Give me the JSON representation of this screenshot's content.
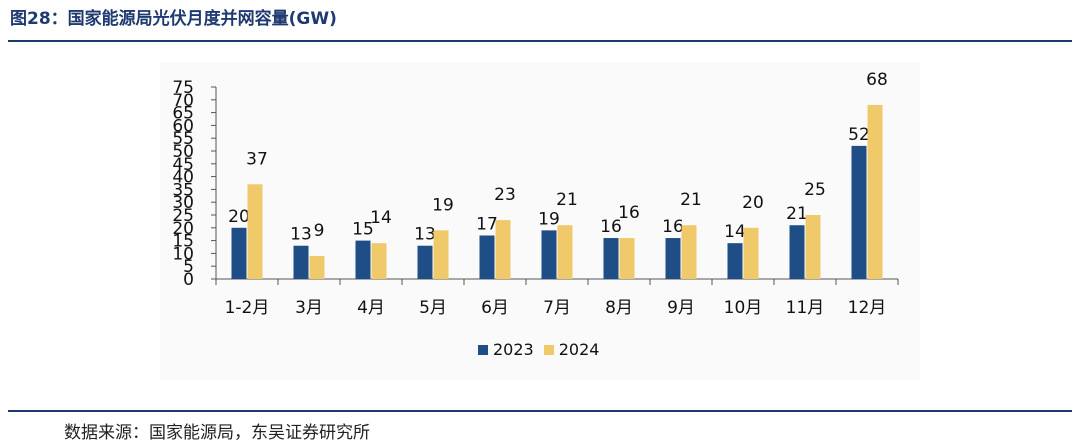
{
  "figure": {
    "title": "图28：国家能源局光伏月度并网容量(GW)",
    "source": "数据来源：国家能源局，东吴证券研究所"
  },
  "colors": {
    "s2023": "#1f4e87",
    "s2024": "#f0c96a"
  },
  "chart_data": {
    "type": "bar",
    "title": "",
    "xlabel": "",
    "ylabel": "",
    "categories": [
      "1-2月",
      "3月",
      "4月",
      "5月",
      "6月",
      "7月",
      "8月",
      "9月",
      "10月",
      "11月",
      "12月"
    ],
    "series": [
      {
        "name": "2023",
        "values": [
          20,
          13,
          15,
          13,
          17,
          19,
          16,
          16,
          14,
          21,
          52
        ]
      },
      {
        "name": "2024",
        "values": [
          37,
          9,
          14,
          19,
          23,
          21,
          16,
          21,
          20,
          25,
          68
        ]
      }
    ],
    "ylim": [
      0,
      75
    ],
    "yticks": [
      0,
      5,
      10,
      15,
      20,
      25,
      30,
      35,
      40,
      45,
      50,
      55,
      60,
      65,
      70,
      75
    ],
    "grid": false,
    "legend": "bottom"
  }
}
